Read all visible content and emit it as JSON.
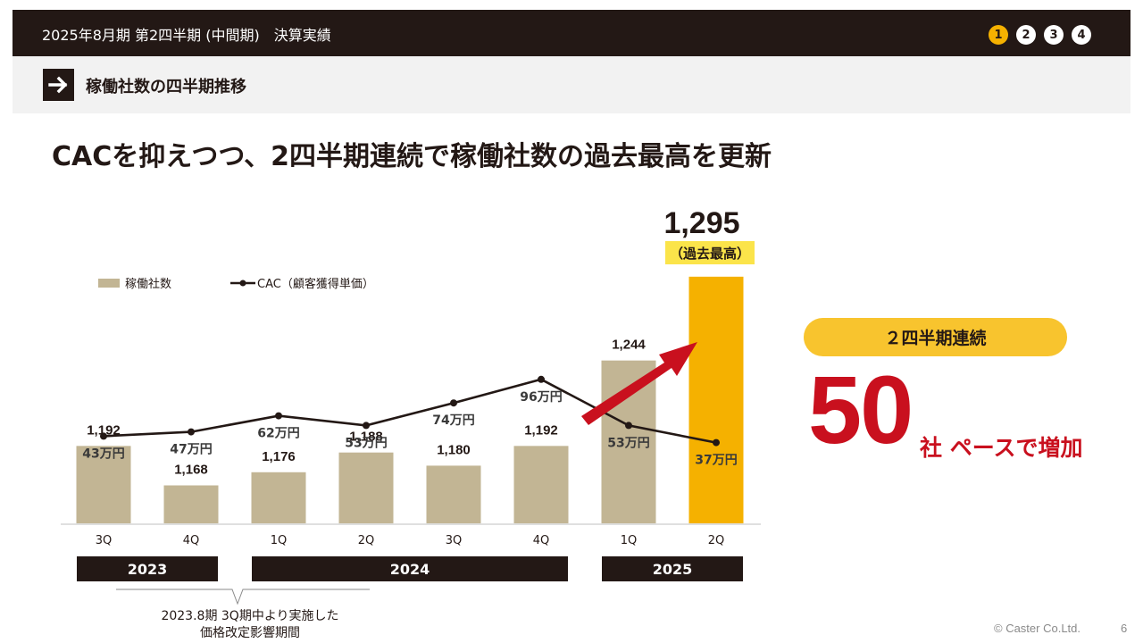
{
  "header": {
    "title": "2025年8月期 第2四半期 (中間期)　決算実績",
    "pages": [
      {
        "label": "1",
        "active": true
      },
      {
        "label": "2",
        "active": false
      },
      {
        "label": "3",
        "active": false
      },
      {
        "label": "4",
        "active": false
      }
    ]
  },
  "section": {
    "title": "稼働社数の四半期推移"
  },
  "headline": "CACを抑えつつ、2四半期連続で稼働社数の過去最高を更新",
  "colors": {
    "bar": "#c2b594",
    "highlight": "#f5b100",
    "line": "#231815",
    "accent_red": "#c9101e",
    "dark": "#231815"
  },
  "chart_data": {
    "type": "bar",
    "categories": [
      "3Q",
      "4Q",
      "1Q",
      "2Q",
      "3Q",
      "4Q",
      "1Q",
      "2Q"
    ],
    "category_years": [
      "2023",
      "2023",
      "2024",
      "2024",
      "2024",
      "2024",
      "2025",
      "2025"
    ],
    "year_groups": [
      {
        "label": "2023",
        "first": 0,
        "last": 1
      },
      {
        "label": "2024",
        "first": 2,
        "last": 5
      },
      {
        "label": "2025",
        "first": 6,
        "last": 7
      }
    ],
    "series": [
      {
        "name": "稼働社数",
        "kind": "bar",
        "values": [
          1192,
          1168,
          1176,
          1188,
          1180,
          1192,
          1244,
          1295
        ],
        "labels": [
          "1,192",
          "1,168",
          "1,176",
          "1,188",
          "1,180",
          "1,192",
          "1,244",
          "1,295"
        ],
        "highlight_index": 7
      },
      {
        "name": "CAC（顧客獲得単価）",
        "kind": "line",
        "values": [
          43,
          47,
          62,
          53,
          74,
          96,
          53,
          37
        ],
        "labels": [
          "43万円",
          "47万円",
          "62万円",
          "53万円",
          "74万円",
          "96万円",
          "53万円",
          "37万円"
        ]
      }
    ],
    "highlight_annotation": "（過去最高）",
    "legend_position": "top-left"
  },
  "side_panel": {
    "pill": "２四半期連続",
    "big_number": "50",
    "suffix": "社 ペースで増加"
  },
  "note": {
    "line1": "2023.8期 3Q期中より実施した",
    "line2": "価格改定影響期間"
  },
  "footer": {
    "copyright": "© Caster Co.Ltd.",
    "page": "6"
  }
}
